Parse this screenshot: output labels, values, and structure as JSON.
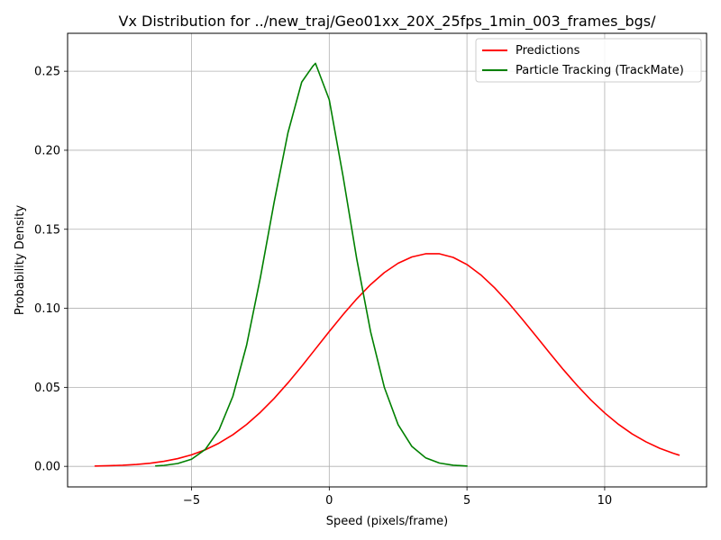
{
  "chart_data": {
    "type": "line",
    "title": "Vx Distribution for ../new_traj/Geo01xx_20X_25fps_1min_003_frames_bgs/",
    "xlabel": "Speed (pixels/frame)",
    "ylabel": "Probability Density",
    "xlim": [
      -9.5,
      13.7
    ],
    "ylim": [
      -0.013,
      0.274
    ],
    "xticks": [
      -5,
      0,
      5,
      10
    ],
    "xtick_labels": [
      "−5",
      "0",
      "5",
      "10"
    ],
    "yticks": [
      0.0,
      0.05,
      0.1,
      0.15,
      0.2,
      0.25
    ],
    "ytick_labels": [
      "0.00",
      "0.05",
      "0.10",
      "0.15",
      "0.20",
      "0.25"
    ],
    "grid": true,
    "legend_position": "top-right",
    "series": [
      {
        "name": "Predictions",
        "color": "#ff0000",
        "points": [
          [
            -8.5,
            0.0002
          ],
          [
            -8.0,
            0.0004
          ],
          [
            -7.5,
            0.0007
          ],
          [
            -7.0,
            0.0012
          ],
          [
            -6.5,
            0.002
          ],
          [
            -6.0,
            0.0032
          ],
          [
            -5.5,
            0.0049
          ],
          [
            -5.0,
            0.0073
          ],
          [
            -4.5,
            0.0105
          ],
          [
            -4.0,
            0.0147
          ],
          [
            -3.5,
            0.02
          ],
          [
            -3.0,
            0.0265
          ],
          [
            -2.5,
            0.0342
          ],
          [
            -2.0,
            0.043
          ],
          [
            -1.5,
            0.0528
          ],
          [
            -1.0,
            0.0633
          ],
          [
            -0.5,
            0.0743
          ],
          [
            0.0,
            0.0853
          ],
          [
            0.5,
            0.096
          ],
          [
            1.0,
            0.106
          ],
          [
            1.5,
            0.115
          ],
          [
            2.0,
            0.1226
          ],
          [
            2.5,
            0.1285
          ],
          [
            3.0,
            0.1325
          ],
          [
            3.5,
            0.1345
          ],
          [
            4.0,
            0.1345
          ],
          [
            4.5,
            0.1322
          ],
          [
            5.0,
            0.1277
          ],
          [
            5.5,
            0.1212
          ],
          [
            6.0,
            0.113
          ],
          [
            6.5,
            0.1036
          ],
          [
            7.0,
            0.0933
          ],
          [
            7.5,
            0.0826
          ],
          [
            8.0,
            0.0718
          ],
          [
            8.5,
            0.0612
          ],
          [
            9.0,
            0.0512
          ],
          [
            9.5,
            0.042
          ],
          [
            10.0,
            0.0338
          ],
          [
            10.5,
            0.0266
          ],
          [
            11.0,
            0.0205
          ],
          [
            11.5,
            0.0155
          ],
          [
            12.0,
            0.0114
          ],
          [
            12.5,
            0.0082
          ],
          [
            12.7,
            0.0071
          ]
        ]
      },
      {
        "name": "Particle Tracking (TrackMate)",
        "color": "#008000",
        "points": [
          [
            -6.3,
            0.0003
          ],
          [
            -6.0,
            0.0006
          ],
          [
            -5.5,
            0.0018
          ],
          [
            -5.0,
            0.0045
          ],
          [
            -4.5,
            0.0107
          ],
          [
            -4.0,
            0.0231
          ],
          [
            -3.5,
            0.0443
          ],
          [
            -3.0,
            0.0767
          ],
          [
            -2.5,
            0.1195
          ],
          [
            -2.0,
            0.1672
          ],
          [
            -1.5,
            0.211
          ],
          [
            -1.0,
            0.2431
          ],
          [
            -0.6,
            0.2531
          ],
          [
            -0.5,
            0.255
          ],
          [
            0.0,
            0.232
          ],
          [
            0.5,
            0.1837
          ],
          [
            1.0,
            0.1311
          ],
          [
            1.5,
            0.0853
          ],
          [
            2.0,
            0.05
          ],
          [
            2.5,
            0.0264
          ],
          [
            3.0,
            0.0126
          ],
          [
            3.5,
            0.0054
          ],
          [
            4.0,
            0.0021
          ],
          [
            4.5,
            0.0007
          ],
          [
            5.0,
            0.0002
          ]
        ]
      }
    ]
  }
}
